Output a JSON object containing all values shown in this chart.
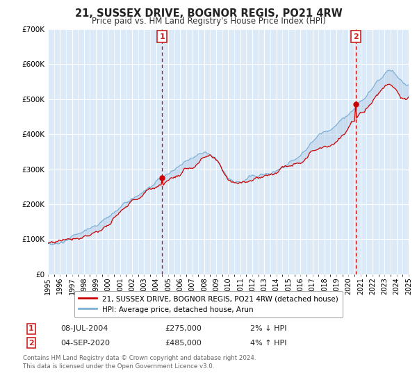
{
  "title": "21, SUSSEX DRIVE, BOGNOR REGIS, PO21 4RW",
  "subtitle": "Price paid vs. HM Land Registry's House Price Index (HPI)",
  "bg_color": "#dce9f7",
  "fig_bg_color": "#ffffff",
  "grid_color": "#ffffff",
  "line_color_red": "#cc0000",
  "line_color_blue": "#7bafd4",
  "fill_color": "#b8d0e8",
  "marker_color": "#cc0000",
  "vline_color": "#cc0000",
  "label_box_color": "#cc2222",
  "ylim": [
    0,
    700000
  ],
  "yticks": [
    0,
    100000,
    200000,
    300000,
    400000,
    500000,
    600000,
    700000
  ],
  "ytick_labels": [
    "£0",
    "£100K",
    "£200K",
    "£300K",
    "£400K",
    "£500K",
    "£600K",
    "£700K"
  ],
  "sale1_price": 275000,
  "sale1_label": "1",
  "sale1_text": "08-JUL-2004",
  "sale1_amount": "£275,000",
  "sale1_hpi": "2% ↓ HPI",
  "sale2_price": 485000,
  "sale2_label": "2",
  "sale2_text": "04-SEP-2020",
  "sale2_amount": "£485,000",
  "sale2_hpi": "4% ↑ HPI",
  "legend_label1": "21, SUSSEX DRIVE, BOGNOR REGIS, PO21 4RW (detached house)",
  "legend_label2": "HPI: Average price, detached house, Arun",
  "footer1": "Contains HM Land Registry data © Crown copyright and database right 2024.",
  "footer2": "This data is licensed under the Open Government Licence v3.0."
}
